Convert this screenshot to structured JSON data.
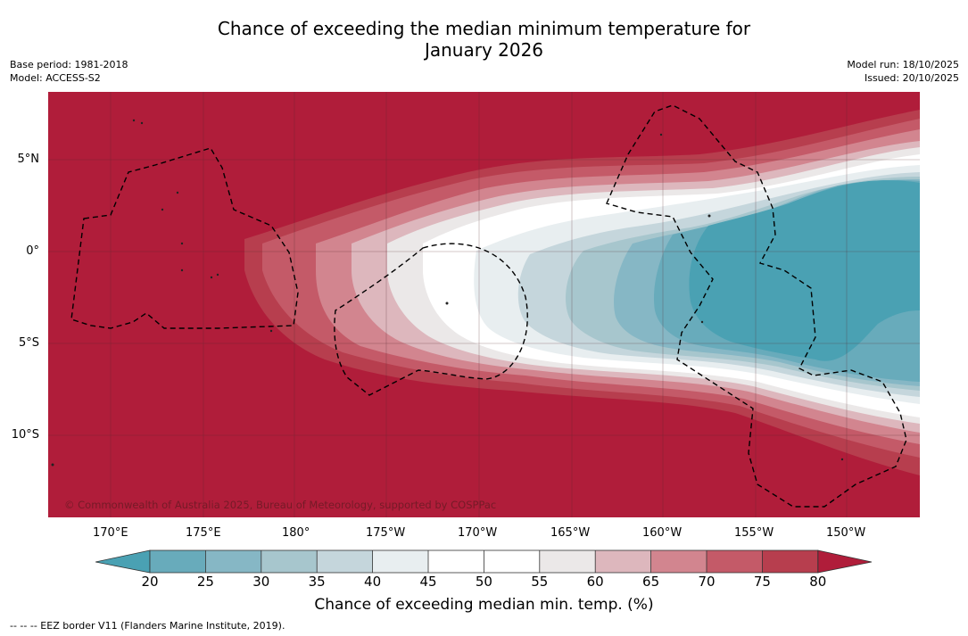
{
  "title": {
    "line1": "Chance of exceeding the median minimum temperature for",
    "line2": "January 2026"
  },
  "meta_left": {
    "base_period": "Base period: 1981-2018",
    "model": "Model: ACCESS-S2"
  },
  "meta_right": {
    "model_run": "Model run: 18/10/2025",
    "issued": "Issued: 20/10/2025"
  },
  "map": {
    "copyright": "© Commonwealth of Australia 2025, Bureau of Meteorology, supported by COSPPac",
    "lon_labels": [
      "170°E",
      "175°E",
      "180°",
      "175°W",
      "170°W",
      "165°W",
      "160°W",
      "155°W",
      "150°W"
    ],
    "lat_labels": [
      "5°N",
      "0°",
      "5°S",
      "10°S"
    ]
  },
  "colorbar": {
    "label": "Chance of exceeding median min. temp. (%)",
    "ticks": [
      "20",
      "25",
      "30",
      "35",
      "40",
      "45",
      "50",
      "55",
      "60",
      "65",
      "70",
      "75",
      "80"
    ],
    "colors": {
      "below_20": "#4aa1b3",
      "20_25": "#68abbb",
      "25_30": "#86b7c5",
      "30_35": "#a7c6cd",
      "35_40": "#c5d6dc",
      "40_45": "#e8eef0",
      "45_50": "#ffffff",
      "50_55": "#ffffff",
      "55_60": "#ebe8e8",
      "60_65": "#ddb7bd",
      "65_70": "#d2858f",
      "70_75": "#c45a68",
      "75_80": "#b73e4e",
      "above_80": "#b01d3a"
    }
  },
  "footnote": "--  --  -- EEZ border V11 (Flanders Marine Institute, 2019)."
}
